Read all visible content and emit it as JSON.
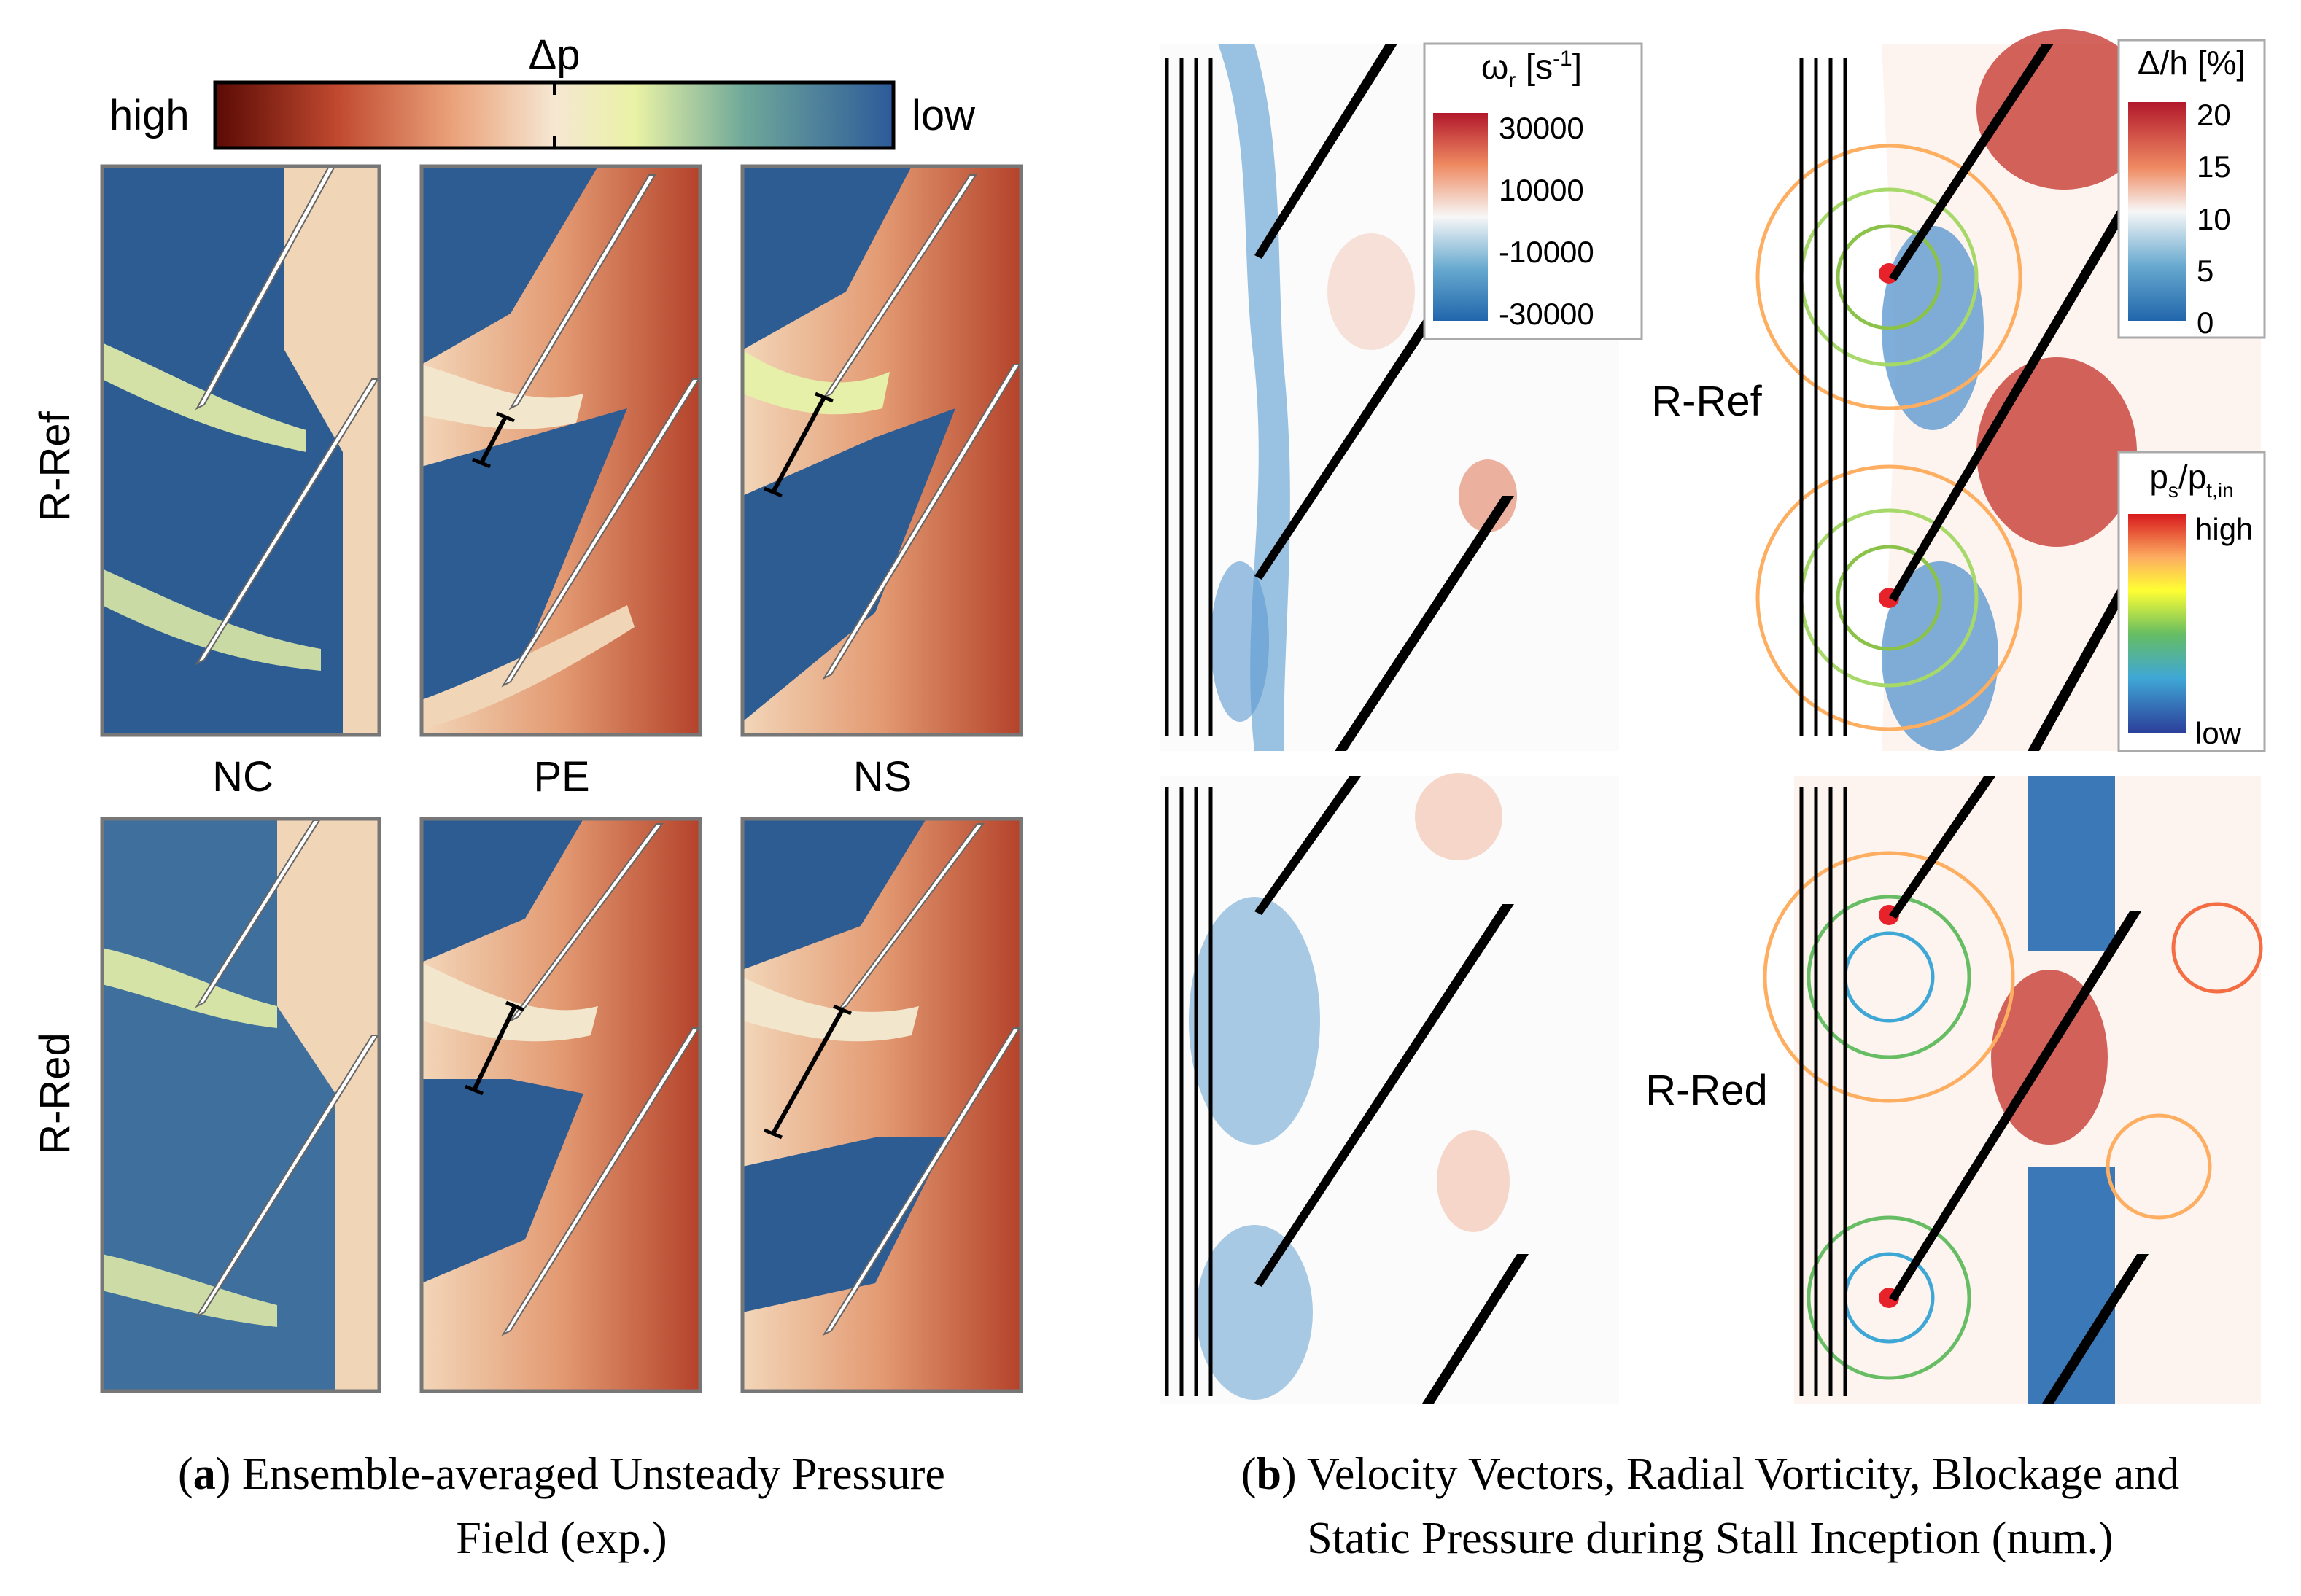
{
  "panel_a": {
    "colorbar": {
      "title": "Δp",
      "high_label": "high",
      "low_label": "low"
    },
    "row_labels": [
      "R-Ref",
      "R-Red"
    ],
    "column_labels": [
      "NC",
      "PE",
      "NS"
    ],
    "caption_letter": "a",
    "caption_line1": "Ensemble-averaged Unsteady Pressure",
    "caption_line2": "Field (exp.)"
  },
  "panel_b": {
    "row_labels": [
      "R-Ref",
      "R-Red"
    ],
    "vorticity_legend": {
      "title_symbol": "ω",
      "title_sub": "r",
      "title_unit_open": " [s",
      "title_unit_sup": "-1",
      "title_unit_close": "]",
      "ticks": [
        "30000",
        "10000",
        "-10000",
        "-30000"
      ]
    },
    "blockage_legend": {
      "title": "Δ/h [%]",
      "ticks": [
        "20",
        "15",
        "10",
        "5",
        "0"
      ]
    },
    "pressure_legend": {
      "title_p": "p",
      "title_p_sub": "s",
      "title_slash": "/p",
      "title_sub2": "t,in",
      "high_label": "high",
      "low_label": "low"
    },
    "caption_letter": "b",
    "caption_line1": "Velocity Vectors, Radial Vorticity, Blockage and",
    "caption_line2": "Static Pressure during Stall Inception (num.)"
  },
  "colors": {
    "high_red": "#8b1a10",
    "mid_orange": "#e08a5e",
    "mid_beige": "#f2d6b8",
    "mid_yellow": "#e9f2a5",
    "low_blue": "#2c5a9a",
    "vort_red": "#d6604d",
    "vort_blue": "#3a78b8"
  }
}
